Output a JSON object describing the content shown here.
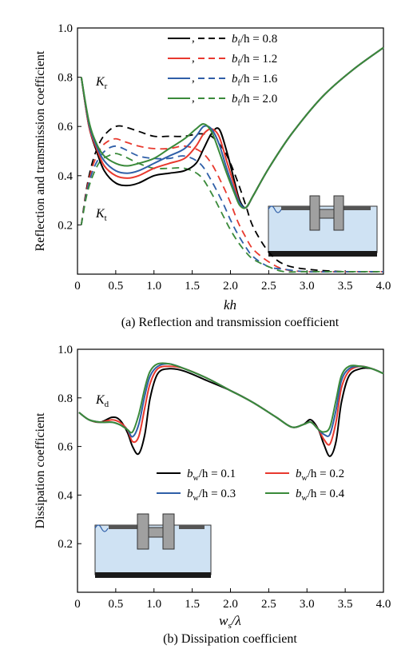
{
  "chart_data": [
    {
      "type": "line",
      "ylabel": "Reflection and transmission coefficient",
      "xlabel": "kh",
      "caption": "(a) Reflection and transmission coefficient",
      "xlim": [
        0,
        4.0
      ],
      "ylim": [
        0,
        1.0
      ],
      "xticks": [
        "0",
        "0.5",
        "1.0",
        "1.5",
        "2.0",
        "2.5",
        "3.0",
        "3.5",
        "4.0"
      ],
      "yticks": [
        "0.2",
        "0.4",
        "0.6",
        "0.8",
        "1.0"
      ],
      "annotations": {
        "kr_main": "K",
        "kr_sub": "r",
        "kt_main": "K",
        "kt_sub": "t"
      },
      "legend": [
        {
          "var": "b",
          "sub": "f",
          "value": "/h = 0.8"
        },
        {
          "var": "b",
          "sub": "f",
          "value": "/h = 1.2"
        },
        {
          "var": "b",
          "sub": "f",
          "value": "/h = 1.6"
        },
        {
          "var": "b",
          "sub": "f",
          "value": "/h = 2.0"
        }
      ],
      "legend_separator": ",",
      "series_colors": [
        "#000000",
        "#e8392e",
        "#2f5fa8",
        "#3a8a3a"
      ],
      "reflection": [
        {
          "x": [
            0.05,
            0.15,
            0.25,
            0.35,
            0.5,
            0.65,
            0.8,
            1.0,
            1.2,
            1.4,
            1.55,
            1.65,
            1.75,
            1.85,
            1.95,
            2.05,
            2.12,
            2.2,
            2.3,
            2.5,
            2.8,
            3.2,
            3.6,
            4.0
          ],
          "y": [
            0.8,
            0.6,
            0.5,
            0.42,
            0.37,
            0.36,
            0.37,
            0.4,
            0.41,
            0.42,
            0.45,
            0.51,
            0.57,
            0.59,
            0.5,
            0.38,
            0.3,
            0.27,
            0.32,
            0.43,
            0.57,
            0.72,
            0.83,
            0.92
          ]
        },
        {
          "x": [
            0.05,
            0.15,
            0.25,
            0.35,
            0.5,
            0.65,
            0.8,
            1.0,
            1.2,
            1.4,
            1.55,
            1.65,
            1.75,
            1.85,
            1.95,
            2.05,
            2.12,
            2.2,
            2.3,
            2.5,
            2.8,
            3.2,
            3.6,
            4.0
          ],
          "y": [
            0.8,
            0.6,
            0.51,
            0.44,
            0.4,
            0.39,
            0.4,
            0.43,
            0.45,
            0.47,
            0.52,
            0.57,
            0.59,
            0.56,
            0.46,
            0.36,
            0.29,
            0.27,
            0.32,
            0.43,
            0.57,
            0.72,
            0.83,
            0.92
          ]
        },
        {
          "x": [
            0.05,
            0.15,
            0.25,
            0.35,
            0.5,
            0.65,
            0.8,
            1.0,
            1.2,
            1.4,
            1.55,
            1.65,
            1.75,
            1.85,
            1.95,
            2.05,
            2.12,
            2.2,
            2.3,
            2.5,
            2.8,
            3.2,
            3.6,
            4.0
          ],
          "y": [
            0.8,
            0.61,
            0.52,
            0.46,
            0.42,
            0.41,
            0.42,
            0.45,
            0.48,
            0.51,
            0.56,
            0.6,
            0.59,
            0.53,
            0.43,
            0.34,
            0.29,
            0.27,
            0.32,
            0.43,
            0.57,
            0.72,
            0.83,
            0.92
          ]
        },
        {
          "x": [
            0.05,
            0.15,
            0.25,
            0.35,
            0.5,
            0.65,
            0.8,
            1.0,
            1.2,
            1.4,
            1.55,
            1.65,
            1.75,
            1.85,
            1.95,
            2.05,
            2.12,
            2.2,
            2.3,
            2.5,
            2.8,
            3.2,
            3.6,
            4.0
          ],
          "y": [
            0.8,
            0.62,
            0.53,
            0.48,
            0.45,
            0.44,
            0.45,
            0.47,
            0.51,
            0.55,
            0.59,
            0.61,
            0.58,
            0.5,
            0.41,
            0.33,
            0.28,
            0.27,
            0.32,
            0.43,
            0.57,
            0.72,
            0.83,
            0.92
          ]
        }
      ],
      "transmission": [
        {
          "x": [
            0.05,
            0.12,
            0.2,
            0.3,
            0.4,
            0.5,
            0.6,
            0.8,
            1.0,
            1.2,
            1.4,
            1.6,
            1.75,
            1.9,
            2.0,
            2.1,
            2.2,
            2.3,
            2.5,
            2.7,
            3.0,
            3.5,
            4.0
          ],
          "y": [
            0.2,
            0.35,
            0.46,
            0.54,
            0.58,
            0.6,
            0.6,
            0.58,
            0.56,
            0.56,
            0.56,
            0.57,
            0.56,
            0.51,
            0.45,
            0.37,
            0.28,
            0.19,
            0.09,
            0.04,
            0.02,
            0.01,
            0.01
          ]
        },
        {
          "x": [
            0.05,
            0.12,
            0.2,
            0.3,
            0.4,
            0.5,
            0.6,
            0.8,
            1.0,
            1.2,
            1.4,
            1.6,
            1.75,
            1.9,
            2.0,
            2.1,
            2.2,
            2.3,
            2.5,
            2.7,
            3.0,
            3.5,
            4.0
          ],
          "y": [
            0.2,
            0.34,
            0.44,
            0.51,
            0.54,
            0.55,
            0.54,
            0.52,
            0.51,
            0.51,
            0.52,
            0.5,
            0.45,
            0.36,
            0.29,
            0.21,
            0.15,
            0.1,
            0.05,
            0.02,
            0.01,
            0.01,
            0.01
          ]
        },
        {
          "x": [
            0.05,
            0.12,
            0.2,
            0.3,
            0.4,
            0.5,
            0.6,
            0.8,
            1.0,
            1.2,
            1.4,
            1.6,
            1.75,
            1.9,
            2.0,
            2.1,
            2.2,
            2.3,
            2.5,
            2.7,
            3.0,
            3.5,
            4.0
          ],
          "y": [
            0.2,
            0.33,
            0.42,
            0.48,
            0.51,
            0.52,
            0.51,
            0.48,
            0.47,
            0.47,
            0.48,
            0.45,
            0.38,
            0.29,
            0.22,
            0.16,
            0.11,
            0.07,
            0.03,
            0.02,
            0.01,
            0.01,
            0.01
          ]
        },
        {
          "x": [
            0.05,
            0.12,
            0.2,
            0.3,
            0.4,
            0.5,
            0.6,
            0.8,
            1.0,
            1.2,
            1.4,
            1.6,
            1.75,
            1.9,
            2.0,
            2.1,
            2.2,
            2.3,
            2.5,
            2.7,
            3.0,
            3.5,
            4.0
          ],
          "y": [
            0.2,
            0.32,
            0.4,
            0.46,
            0.48,
            0.49,
            0.48,
            0.45,
            0.43,
            0.43,
            0.43,
            0.4,
            0.33,
            0.24,
            0.18,
            0.13,
            0.09,
            0.06,
            0.03,
            0.01,
            0.01,
            0.01,
            0.01
          ]
        }
      ]
    },
    {
      "type": "line",
      "ylabel": "Dissipation coefficient",
      "xlabel_main": "w",
      "xlabel_sub": "s",
      "xlabel_rest": "/λ",
      "caption": "(b) Dissipation coefficient",
      "xlim": [
        0,
        4.0
      ],
      "ylim": [
        0,
        1.0
      ],
      "xticks": [
        "0",
        "0.5",
        "1.0",
        "1.5",
        "2.0",
        "2.5",
        "3.0",
        "3.5",
        "4.0"
      ],
      "yticks": [
        "0.2",
        "0.4",
        "0.6",
        "0.8",
        "1.0"
      ],
      "annotation_main": "K",
      "annotation_sub": "d",
      "legend": [
        {
          "var": "b",
          "sub": "w",
          "value": "/h = 0.1"
        },
        {
          "var": "b",
          "sub": "w",
          "value": "/h = 0.2"
        },
        {
          "var": "b",
          "sub": "w",
          "value": "/h = 0.3"
        },
        {
          "var": "b",
          "sub": "w",
          "value": "/h = 0.4"
        }
      ],
      "series_colors": [
        "#000000",
        "#e8392e",
        "#2f5fa8",
        "#3a8a3a"
      ],
      "series": [
        {
          "x": [
            0.02,
            0.15,
            0.3,
            0.45,
            0.55,
            0.65,
            0.72,
            0.8,
            0.88,
            0.95,
            1.05,
            1.2,
            1.4,
            1.7,
            2.0,
            2.3,
            2.6,
            2.8,
            2.95,
            3.05,
            3.15,
            3.22,
            3.3,
            3.38,
            3.45,
            3.55,
            3.7,
            3.85,
            4.0
          ],
          "y": [
            0.74,
            0.71,
            0.7,
            0.72,
            0.71,
            0.66,
            0.6,
            0.57,
            0.65,
            0.8,
            0.9,
            0.92,
            0.91,
            0.87,
            0.83,
            0.78,
            0.72,
            0.68,
            0.69,
            0.71,
            0.67,
            0.61,
            0.56,
            0.62,
            0.78,
            0.89,
            0.92,
            0.92,
            0.9
          ]
        },
        {
          "x": [
            0.02,
            0.15,
            0.3,
            0.45,
            0.55,
            0.65,
            0.72,
            0.8,
            0.88,
            0.95,
            1.05,
            1.2,
            1.4,
            1.7,
            2.0,
            2.3,
            2.6,
            2.8,
            2.95,
            3.05,
            3.15,
            3.22,
            3.3,
            3.38,
            3.45,
            3.55,
            3.7,
            3.85,
            4.0
          ],
          "y": [
            0.74,
            0.71,
            0.7,
            0.71,
            0.7,
            0.67,
            0.62,
            0.64,
            0.76,
            0.86,
            0.92,
            0.93,
            0.92,
            0.88,
            0.83,
            0.78,
            0.72,
            0.68,
            0.69,
            0.7,
            0.67,
            0.63,
            0.61,
            0.7,
            0.84,
            0.91,
            0.93,
            0.92,
            0.9
          ]
        },
        {
          "x": [
            0.02,
            0.15,
            0.3,
            0.45,
            0.55,
            0.65,
            0.72,
            0.8,
            0.88,
            0.95,
            1.05,
            1.2,
            1.4,
            1.7,
            2.0,
            2.3,
            2.6,
            2.8,
            2.95,
            3.05,
            3.15,
            3.22,
            3.3,
            3.38,
            3.45,
            3.55,
            3.7,
            3.85,
            4.0
          ],
          "y": [
            0.74,
            0.71,
            0.7,
            0.7,
            0.69,
            0.67,
            0.64,
            0.69,
            0.81,
            0.89,
            0.93,
            0.94,
            0.92,
            0.88,
            0.83,
            0.78,
            0.72,
            0.68,
            0.69,
            0.7,
            0.67,
            0.65,
            0.65,
            0.75,
            0.87,
            0.92,
            0.93,
            0.92,
            0.9
          ]
        },
        {
          "x": [
            0.02,
            0.15,
            0.3,
            0.45,
            0.55,
            0.65,
            0.72,
            0.8,
            0.88,
            0.95,
            1.05,
            1.2,
            1.4,
            1.7,
            2.0,
            2.3,
            2.6,
            2.8,
            2.95,
            3.05,
            3.15,
            3.22,
            3.3,
            3.38,
            3.45,
            3.55,
            3.7,
            3.85,
            4.0
          ],
          "y": [
            0.74,
            0.71,
            0.7,
            0.7,
            0.69,
            0.67,
            0.66,
            0.73,
            0.84,
            0.91,
            0.94,
            0.94,
            0.92,
            0.88,
            0.83,
            0.78,
            0.72,
            0.68,
            0.69,
            0.7,
            0.67,
            0.66,
            0.68,
            0.79,
            0.89,
            0.93,
            0.93,
            0.92,
            0.9
          ]
        }
      ]
    }
  ]
}
